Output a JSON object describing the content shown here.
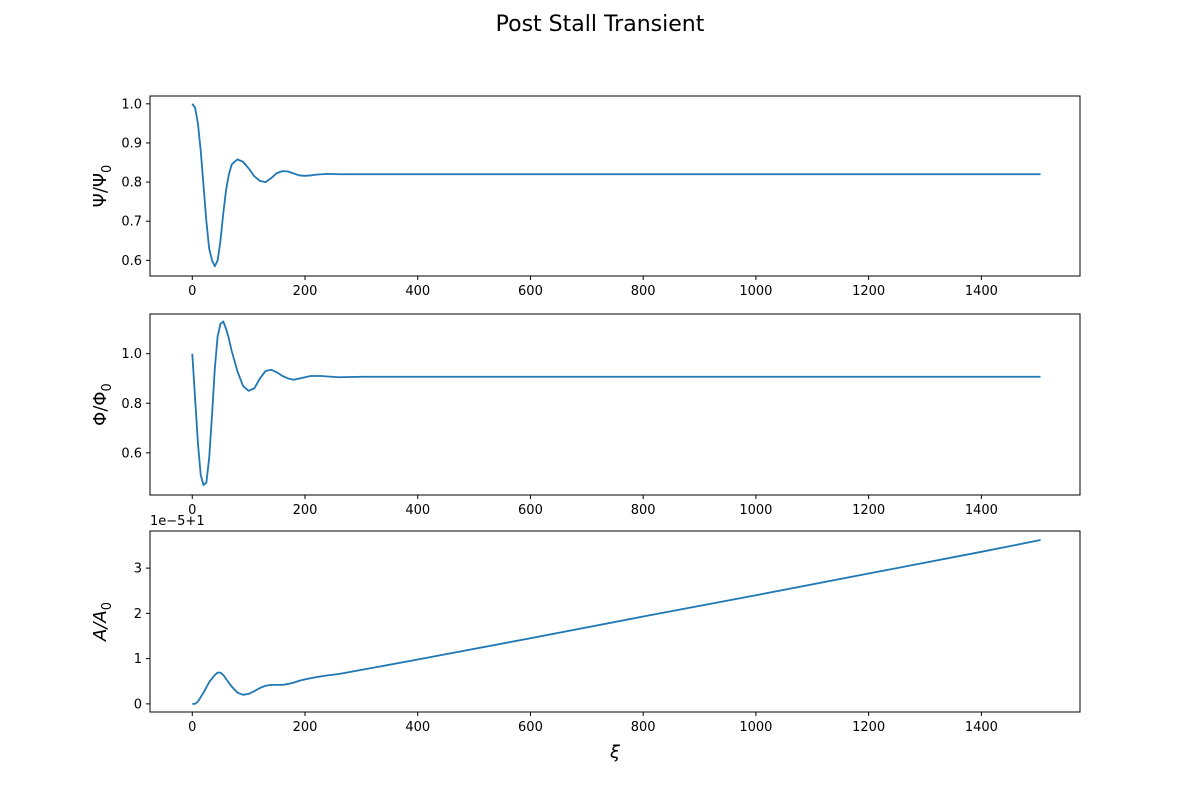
{
  "title": "Post Stall Transient",
  "colors": {
    "line": "#1f77b4",
    "axes": "#000000",
    "background": "#ffffff"
  },
  "chart_data": [
    {
      "type": "line",
      "ylabel_base": "Ψ/Ψ",
      "ylabel_sub": "0",
      "xlabel": "",
      "xlim": [
        -75,
        1575
      ],
      "ylim": [
        0.56,
        1.02
      ],
      "xticks": [
        "0",
        "200",
        "400",
        "600",
        "800",
        "1000",
        "1200",
        "1400"
      ],
      "xtick_values": [
        0,
        200,
        400,
        600,
        800,
        1000,
        1200,
        1400
      ],
      "yticks": [
        "0.6",
        "0.7",
        "0.8",
        "0.9",
        "1.0"
      ],
      "ytick_values": [
        0.6,
        0.7,
        0.8,
        0.9,
        1.0
      ],
      "offset_text": "",
      "x": [
        0,
        5,
        10,
        15,
        20,
        25,
        30,
        35,
        40,
        45,
        50,
        55,
        60,
        65,
        70,
        80,
        90,
        100,
        110,
        120,
        130,
        140,
        150,
        160,
        170,
        180,
        190,
        200,
        210,
        220,
        240,
        260,
        280,
        300,
        350,
        400,
        600,
        800,
        1000,
        1200,
        1400,
        1505
      ],
      "y": [
        1.0,
        0.99,
        0.95,
        0.88,
        0.79,
        0.7,
        0.63,
        0.6,
        0.585,
        0.6,
        0.65,
        0.72,
        0.78,
        0.82,
        0.845,
        0.858,
        0.852,
        0.835,
        0.815,
        0.803,
        0.8,
        0.81,
        0.823,
        0.828,
        0.827,
        0.822,
        0.817,
        0.816,
        0.817,
        0.819,
        0.821,
        0.82,
        0.82,
        0.82,
        0.82,
        0.82,
        0.82,
        0.82,
        0.82,
        0.82,
        0.82,
        0.82
      ]
    },
    {
      "type": "line",
      "ylabel_base": "Φ/Φ",
      "ylabel_sub": "0",
      "xlabel": "",
      "xlim": [
        -75,
        1575
      ],
      "ylim": [
        0.43,
        1.16
      ],
      "xticks": [
        "0",
        "200",
        "400",
        "600",
        "800",
        "1000",
        "1200",
        "1400"
      ],
      "xtick_values": [
        0,
        200,
        400,
        600,
        800,
        1000,
        1200,
        1400
      ],
      "yticks": [
        "0.6",
        "0.8",
        "1.0"
      ],
      "ytick_values": [
        0.6,
        0.8,
        1.0
      ],
      "offset_text": "",
      "x": [
        0,
        5,
        10,
        15,
        20,
        25,
        30,
        35,
        40,
        45,
        50,
        55,
        60,
        65,
        70,
        80,
        90,
        100,
        110,
        120,
        130,
        140,
        150,
        160,
        170,
        180,
        190,
        200,
        210,
        220,
        230,
        240,
        260,
        280,
        300,
        350,
        400,
        600,
        800,
        1000,
        1200,
        1400,
        1505
      ],
      "y": [
        1.0,
        0.82,
        0.64,
        0.51,
        0.47,
        0.48,
        0.58,
        0.75,
        0.94,
        1.07,
        1.12,
        1.13,
        1.1,
        1.06,
        1.01,
        0.93,
        0.87,
        0.85,
        0.86,
        0.9,
        0.93,
        0.935,
        0.925,
        0.91,
        0.9,
        0.895,
        0.9,
        0.905,
        0.91,
        0.91,
        0.91,
        0.908,
        0.905,
        0.906,
        0.907,
        0.907,
        0.907,
        0.907,
        0.907,
        0.907,
        0.907,
        0.907,
        0.907
      ]
    },
    {
      "type": "line",
      "ylabel_base": "A/A",
      "ylabel_sub": "0",
      "xlabel": "ξ",
      "xlim": [
        -75,
        1575
      ],
      "ylim": [
        -0.18,
        3.82
      ],
      "xticks": [
        "0",
        "200",
        "400",
        "600",
        "800",
        "1000",
        "1200",
        "1400"
      ],
      "xtick_values": [
        0,
        200,
        400,
        600,
        800,
        1000,
        1200,
        1400
      ],
      "yticks": [
        "0",
        "1",
        "2",
        "3"
      ],
      "ytick_values": [
        0,
        1,
        2,
        3
      ],
      "offset_text": "1e−5+1",
      "x": [
        0,
        5,
        10,
        20,
        30,
        40,
        45,
        50,
        55,
        60,
        70,
        80,
        90,
        100,
        110,
        120,
        130,
        140,
        150,
        160,
        170,
        180,
        190,
        200,
        220,
        240,
        260,
        300,
        400,
        600,
        800,
        1000,
        1200,
        1400,
        1505
      ],
      "y": [
        0.0,
        0.0,
        0.05,
        0.25,
        0.48,
        0.64,
        0.69,
        0.69,
        0.64,
        0.55,
        0.38,
        0.25,
        0.2,
        0.22,
        0.28,
        0.35,
        0.4,
        0.42,
        0.42,
        0.42,
        0.44,
        0.47,
        0.51,
        0.54,
        0.59,
        0.63,
        0.66,
        0.75,
        0.98,
        1.45,
        1.93,
        2.4,
        2.88,
        3.36,
        3.62
      ]
    }
  ]
}
